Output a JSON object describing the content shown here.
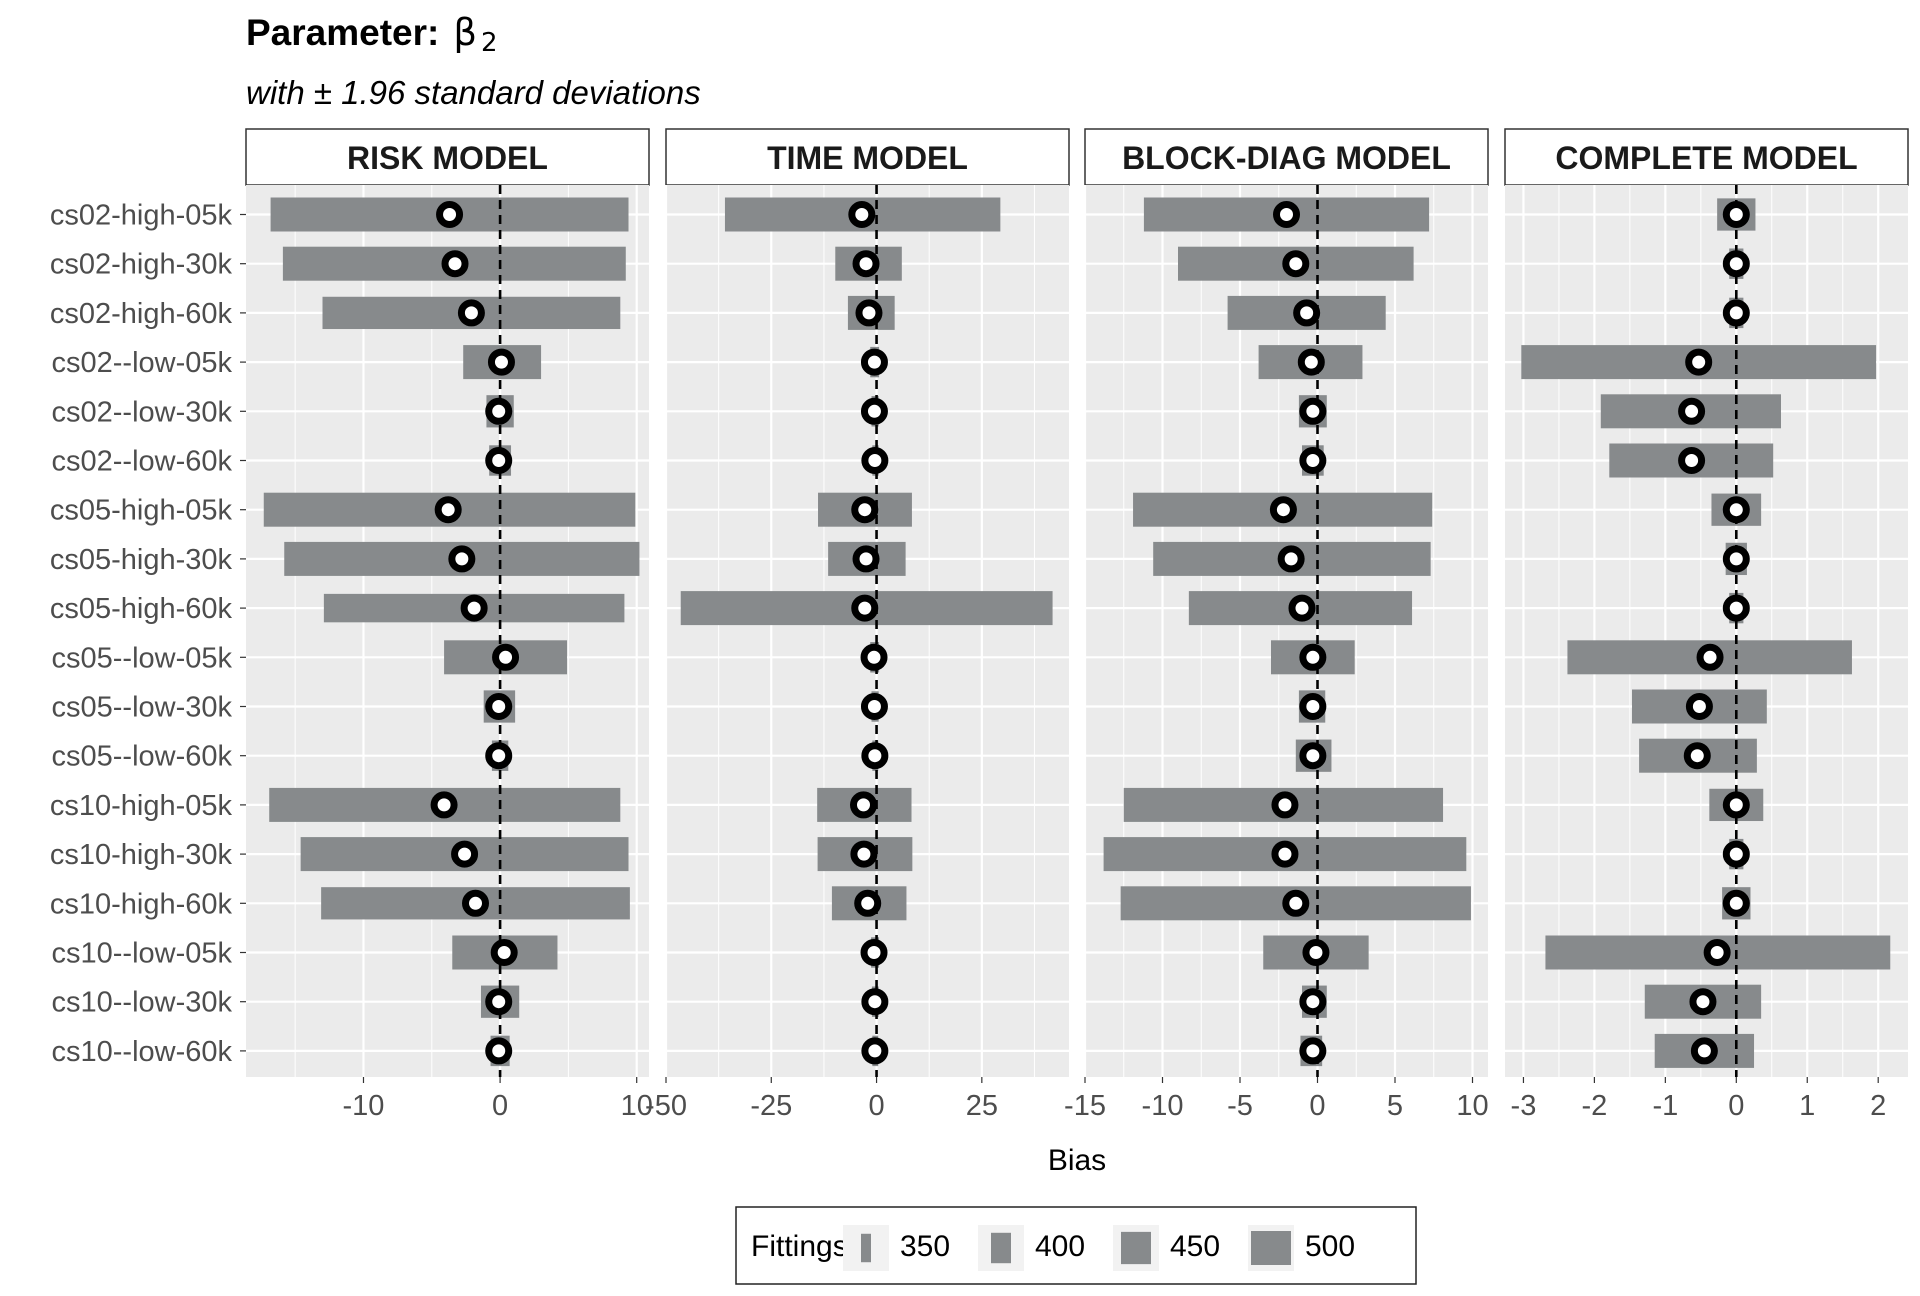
{
  "title": {
    "bold": "Parameter:",
    "symbol": "β",
    "subscript": "2"
  },
  "subtitle": "with ± 1.96 standard deviations",
  "chart_data": {
    "type": "interval-dot",
    "xlabel": "Bias",
    "rows": [
      "cs02-high-05k",
      "cs02-high-30k",
      "cs02-high-60k",
      "cs02--low-05k",
      "cs02--low-30k",
      "cs02--low-60k",
      "cs05-high-05k",
      "cs05-high-30k",
      "cs05-high-60k",
      "cs05--low-05k",
      "cs05--low-30k",
      "cs05--low-60k",
      "cs10-high-05k",
      "cs10-high-30k",
      "cs10-high-60k",
      "cs10--low-05k",
      "cs10--low-30k",
      "cs10--low-60k"
    ],
    "legend": {
      "title": "Fittings",
      "entries": [
        "350",
        "400",
        "450",
        "500"
      ],
      "fittings_values": [
        350,
        400,
        450,
        500
      ]
    },
    "colors": {
      "bar": "#878a8c",
      "panel_bg": "#ebebeb",
      "grid": "#ffffff",
      "point": "#000000",
      "point_fill": "#ffffff"
    },
    "panels": [
      {
        "name": "RISK MODEL",
        "xlim": [
          -18.6,
          10.9
        ],
        "ticks": [
          -10,
          0,
          10
        ],
        "tick_labels": [
          "-10",
          "0",
          "10"
        ],
        "bias": [
          -3.7,
          -3.3,
          -2.1,
          0.1,
          -0.1,
          -0.1,
          -3.8,
          -2.8,
          -1.9,
          0.4,
          -0.1,
          -0.1,
          -4.1,
          -2.6,
          -1.8,
          0.3,
          -0.1,
          -0.1
        ],
        "lower": [
          -16.8,
          -15.9,
          -13.0,
          -2.7,
          -1.0,
          -0.8,
          -17.3,
          -15.8,
          -12.9,
          -4.1,
          -1.2,
          -0.6,
          -16.9,
          -14.6,
          -13.1,
          -3.5,
          -1.4,
          -0.7
        ],
        "upper": [
          9.4,
          9.2,
          8.8,
          3.0,
          1.0,
          0.8,
          9.9,
          10.2,
          9.1,
          4.9,
          1.1,
          0.6,
          8.8,
          9.4,
          9.5,
          4.2,
          1.4,
          0.7
        ],
        "fittings": [
          500,
          500,
          450,
          500,
          450,
          400,
          500,
          500,
          350,
          500,
          450,
          400,
          500,
          500,
          450,
          500,
          450,
          400
        ]
      },
      {
        "name": "TIME MODEL",
        "xlim": [
          -50,
          45.7
        ],
        "ticks": [
          -50,
          -25,
          0,
          25
        ],
        "tick_labels": [
          "-50",
          "-25",
          "0",
          "25"
        ],
        "bias": [
          -3.5,
          -2.5,
          -1.8,
          -0.5,
          -0.5,
          -0.4,
          -2.8,
          -2.5,
          -2.8,
          -0.6,
          -0.5,
          -0.4,
          -3.1,
          -3.0,
          -2.1,
          -0.6,
          -0.4,
          -0.4
        ],
        "lower": [
          -36.0,
          -9.8,
          -6.8,
          -1.5,
          -1.2,
          -1.0,
          -13.9,
          -11.5,
          -46.5,
          -1.5,
          -1.2,
          -1.0,
          -14.1,
          -14.0,
          -10.6,
          -1.3,
          -1.1,
          -1.0
        ],
        "upper": [
          29.4,
          6.0,
          4.3,
          0.6,
          0.5,
          0.5,
          8.4,
          6.9,
          41.8,
          0.6,
          0.5,
          0.4,
          8.3,
          8.5,
          7.1,
          0.6,
          0.5,
          0.4
        ],
        "fittings": [
          500,
          500,
          500,
          400,
          400,
          400,
          500,
          500,
          500,
          400,
          400,
          400,
          500,
          500,
          500,
          400,
          400,
          400
        ]
      },
      {
        "name": "BLOCK-DIAG MODEL",
        "xlim": [
          -15,
          11
        ],
        "ticks": [
          -15,
          -10,
          -5,
          0,
          5,
          10
        ],
        "tick_labels": [
          "-15",
          "-10",
          "-5",
          "0",
          "5",
          "10"
        ],
        "bias": [
          -2.0,
          -1.4,
          -0.7,
          -0.4,
          -0.3,
          -0.3,
          -2.2,
          -1.7,
          -1.0,
          -0.3,
          -0.3,
          -0.3,
          -2.1,
          -2.1,
          -1.4,
          -0.1,
          -0.3,
          -0.3
        ],
        "lower": [
          -11.2,
          -9.0,
          -5.8,
          -3.8,
          -1.2,
          -1.0,
          -11.9,
          -10.6,
          -8.3,
          -3.0,
          -1.2,
          -1.4,
          -12.5,
          -13.8,
          -12.7,
          -3.5,
          -1.0,
          -1.1
        ],
        "upper": [
          7.2,
          6.2,
          4.4,
          2.9,
          0.6,
          0.4,
          7.4,
          7.3,
          6.1,
          2.4,
          0.5,
          0.9,
          8.1,
          9.6,
          9.9,
          3.3,
          0.6,
          0.3
        ],
        "fittings": [
          500,
          500,
          500,
          500,
          450,
          400,
          500,
          500,
          500,
          500,
          450,
          450,
          500,
          500,
          500,
          500,
          450,
          400
        ]
      },
      {
        "name": "COMPLETE MODEL",
        "xlim": [
          -3.26,
          2.42
        ],
        "ticks": [
          -3,
          -2,
          -1,
          0,
          1,
          2
        ],
        "tick_labels": [
          "-3",
          "-2",
          "-1",
          "0",
          "1",
          "2"
        ],
        "bias": [
          0.0,
          0.0,
          0.0,
          -0.53,
          -0.63,
          -0.63,
          0.0,
          0.0,
          0.0,
          -0.37,
          -0.52,
          -0.55,
          0.0,
          0.0,
          0.0,
          -0.27,
          -0.47,
          -0.45
        ],
        "lower": [
          -0.27,
          -0.1,
          -0.1,
          -3.03,
          -1.91,
          -1.79,
          -0.35,
          -0.15,
          -0.1,
          -2.38,
          -1.47,
          -1.37,
          -0.38,
          -0.1,
          -0.2,
          -2.69,
          -1.29,
          -1.15
        ],
        "upper": [
          0.27,
          0.1,
          0.1,
          1.97,
          0.63,
          0.52,
          0.35,
          0.15,
          0.1,
          1.63,
          0.43,
          0.29,
          0.38,
          0.1,
          0.2,
          2.17,
          0.35,
          0.25
        ],
        "fittings": [
          450,
          400,
          400,
          500,
          500,
          500,
          450,
          450,
          400,
          500,
          500,
          500,
          450,
          400,
          450,
          500,
          500,
          500
        ]
      }
    ]
  }
}
